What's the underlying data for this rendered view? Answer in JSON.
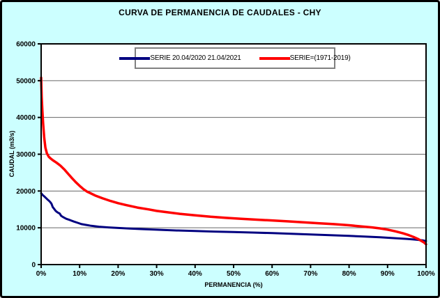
{
  "window": {
    "title": "CURVA DE PERMANENCIA DE CAUDALES - CHY"
  },
  "colors": {
    "background": "#CCFFFF",
    "plot_background": "#FFFFFF",
    "grid": "#666666",
    "axis": "#000000",
    "legend_border": "#808080",
    "series_blue": "#000080",
    "series_red": "#FF0000"
  },
  "legend": {
    "entries": [
      {
        "label": "SERIE 20.04/2020 21.04/2021",
        "color": "#000080"
      },
      {
        "label": "SERIE=(1971-2019)",
        "color": "#FF0000"
      }
    ]
  },
  "chart_data": {
    "type": "line",
    "title": "CURVA DE PERMANENCIA DE CAUDALES - CHY",
    "xlabel": "PERMANENCIA (%)",
    "ylabel": "CAUDAL (m3/s)",
    "xlim": [
      0,
      100
    ],
    "ylim": [
      0,
      60000
    ],
    "xtick_values": [
      0,
      10,
      20,
      30,
      40,
      50,
      60,
      70,
      80,
      90,
      100
    ],
    "xtick_labels": [
      "0%",
      "10%",
      "20%",
      "30%",
      "40%",
      "50%",
      "60%",
      "70%",
      "80%",
      "90%",
      "100%"
    ],
    "ytick_values": [
      0,
      10000,
      20000,
      30000,
      40000,
      50000,
      60000
    ],
    "ytick_labels": [
      "0",
      "10000",
      "20000",
      "30000",
      "40000",
      "50000",
      "60000"
    ],
    "grid": "horizontal-only",
    "legend_position": "top-center",
    "series": [
      {
        "name": "SERIE 20.04/2020 21.04/2021",
        "color": "#000080",
        "width": 3,
        "points": [
          [
            0,
            19400
          ],
          [
            0.4,
            18900
          ],
          [
            0.8,
            18550
          ],
          [
            1.2,
            18150
          ],
          [
            1.6,
            17750
          ],
          [
            2,
            17400
          ],
          [
            2.4,
            16950
          ],
          [
            2.7,
            16500
          ],
          [
            3,
            15650
          ],
          [
            3.4,
            15100
          ],
          [
            3.8,
            14550
          ],
          [
            4.3,
            14150
          ],
          [
            4.8,
            13900
          ],
          [
            5.2,
            13250
          ],
          [
            5.8,
            12850
          ],
          [
            6.5,
            12450
          ],
          [
            7.5,
            12100
          ],
          [
            8.5,
            11700
          ],
          [
            9.5,
            11350
          ],
          [
            10.5,
            11000
          ],
          [
            11.5,
            10800
          ],
          [
            13,
            10550
          ],
          [
            15,
            10300
          ],
          [
            17.5,
            10100
          ],
          [
            20,
            9950
          ],
          [
            23,
            9800
          ],
          [
            26,
            9650
          ],
          [
            30,
            9480
          ],
          [
            35,
            9280
          ],
          [
            40,
            9120
          ],
          [
            45,
            8980
          ],
          [
            50,
            8850
          ],
          [
            55,
            8700
          ],
          [
            60,
            8550
          ],
          [
            65,
            8380
          ],
          [
            70,
            8180
          ],
          [
            75,
            8000
          ],
          [
            80,
            7800
          ],
          [
            84,
            7620
          ],
          [
            88,
            7420
          ],
          [
            92,
            7180
          ],
          [
            95,
            6980
          ],
          [
            97,
            6820
          ],
          [
            99,
            6600
          ],
          [
            100,
            6400
          ]
        ]
      },
      {
        "name": "SERIE=(1971-2019)",
        "color": "#FF0000",
        "width": 3.5,
        "points": [
          [
            0,
            50800
          ],
          [
            0.15,
            45500
          ],
          [
            0.3,
            42000
          ],
          [
            0.5,
            38500
          ],
          [
            0.8,
            34500
          ],
          [
            1.1,
            31800
          ],
          [
            1.5,
            30200
          ],
          [
            2,
            29300
          ],
          [
            2.5,
            28800
          ],
          [
            3,
            28400
          ],
          [
            4,
            27700
          ],
          [
            5,
            26900
          ],
          [
            6,
            25900
          ],
          [
            7,
            24700
          ],
          [
            8,
            23500
          ],
          [
            9,
            22400
          ],
          [
            10,
            21400
          ],
          [
            11,
            20500
          ],
          [
            12,
            19800
          ],
          [
            13,
            19300
          ],
          [
            14,
            18800
          ],
          [
            16,
            18000
          ],
          [
            18,
            17300
          ],
          [
            20,
            16700
          ],
          [
            22,
            16200
          ],
          [
            25,
            15500
          ],
          [
            28,
            15000
          ],
          [
            30,
            14600
          ],
          [
            33,
            14200
          ],
          [
            36,
            13800
          ],
          [
            40,
            13400
          ],
          [
            44,
            13000
          ],
          [
            48,
            12700
          ],
          [
            52,
            12450
          ],
          [
            56,
            12200
          ],
          [
            60,
            12000
          ],
          [
            64,
            11750
          ],
          [
            68,
            11500
          ],
          [
            72,
            11250
          ],
          [
            76,
            11000
          ],
          [
            80,
            10700
          ],
          [
            83,
            10400
          ],
          [
            86,
            10100
          ],
          [
            88,
            9850
          ],
          [
            90,
            9500
          ],
          [
            92,
            9050
          ],
          [
            94,
            8500
          ],
          [
            95.5,
            8000
          ],
          [
            97,
            7400
          ],
          [
            98,
            6900
          ],
          [
            99,
            6300
          ],
          [
            99.6,
            5900
          ],
          [
            100,
            5500
          ]
        ]
      }
    ]
  }
}
